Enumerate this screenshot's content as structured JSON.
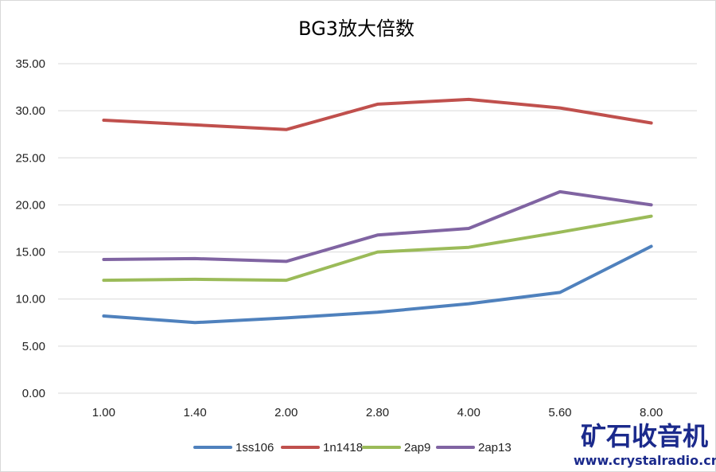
{
  "chart_data": {
    "type": "line",
    "title": "BG3放大倍数",
    "categories": [
      "1.00",
      "1.40",
      "2.00",
      "2.80",
      "4.00",
      "5.60",
      "8.00"
    ],
    "y_ticks": [
      "0.00",
      "5.00",
      "10.00",
      "15.00",
      "20.00",
      "25.00",
      "30.00",
      "35.00"
    ],
    "ylim": [
      0,
      35
    ],
    "grid": true,
    "legend_position": "bottom",
    "series": [
      {
        "name": "1ss106",
        "color": "#4f81bd",
        "values": [
          8.2,
          7.5,
          8.0,
          8.6,
          9.5,
          10.7,
          15.6
        ]
      },
      {
        "name": "1n1418",
        "color": "#c0504d",
        "values": [
          29.0,
          28.5,
          28.0,
          30.7,
          31.2,
          30.3,
          28.7
        ]
      },
      {
        "name": "2ap9",
        "color": "#9bbb59",
        "values": [
          12.0,
          12.1,
          12.0,
          15.0,
          15.5,
          17.1,
          18.8
        ]
      },
      {
        "name": "2ap13",
        "color": "#8064a2",
        "values": [
          14.2,
          14.3,
          14.0,
          16.8,
          17.5,
          21.4,
          20.0
        ]
      }
    ]
  },
  "watermark": {
    "title": "矿石收音机",
    "url": "www.crystalradio.cn"
  }
}
